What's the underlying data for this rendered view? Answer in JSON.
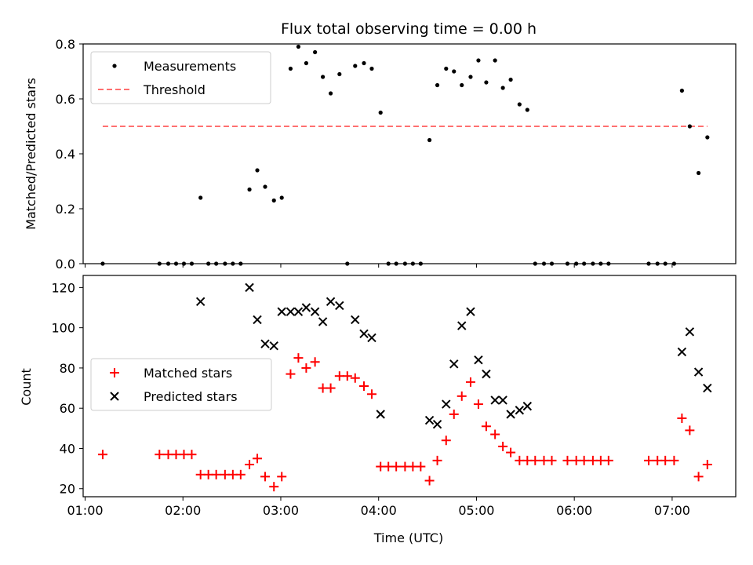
{
  "chart_data": {
    "type": "scatter",
    "title": "Flux total observing time = 0.00 h",
    "xlabel": "Time (UTC)",
    "x_ticks": [
      "01:00",
      "02:00",
      "03:00",
      "04:00",
      "05:00",
      "06:00",
      "07:00"
    ],
    "x_tick_hours": [
      1,
      2,
      3,
      4,
      5,
      6,
      7
    ],
    "xlim_hours": [
      0.98,
      7.65
    ],
    "top": {
      "ylabel": "Matched/Predicted stars",
      "ylim": [
        0,
        0.8
      ],
      "y_ticks": [
        "0.0",
        "0.2",
        "0.4",
        "0.6",
        "0.8"
      ],
      "y_tick_values": [
        0,
        0.2,
        0.4,
        0.6,
        0.8
      ],
      "legend": {
        "placement": "upper left",
        "entries": [
          "Measurements",
          "Threshold"
        ]
      },
      "series": [
        {
          "name": "Measurements",
          "marker": "dot",
          "color": "#000000",
          "x": [
            1.18,
            1.76,
            1.85,
            1.93,
            2.01,
            2.09,
            2.18,
            2.26,
            2.34,
            2.43,
            2.51,
            2.59,
            2.68,
            2.76,
            2.84,
            2.93,
            3.01,
            3.1,
            3.18,
            3.26,
            3.35,
            3.43,
            3.51,
            3.6,
            3.68,
            3.76,
            3.85,
            3.93,
            4.02,
            4.1,
            4.18,
            4.27,
            4.35,
            4.43,
            4.52,
            4.6,
            4.69,
            4.77,
            4.85,
            4.94,
            5.02,
            5.1,
            5.19,
            5.27,
            5.35,
            5.44,
            5.52,
            5.6,
            5.69,
            5.77,
            5.93,
            6.02,
            6.1,
            6.19,
            6.27,
            6.35,
            6.76,
            6.85,
            6.93,
            7.02,
            7.1,
            7.18,
            7.27,
            7.36
          ],
          "y": [
            0,
            0,
            0,
            0,
            0,
            0,
            0.24,
            0,
            0,
            0,
            0,
            0,
            0.27,
            0.34,
            0.28,
            0.23,
            0.24,
            0.71,
            0.79,
            0.73,
            0.77,
            0.68,
            0.62,
            0.69,
            0,
            0.72,
            0.73,
            0.71,
            0.55,
            0,
            0,
            0,
            0,
            0,
            0.45,
            0.65,
            0.71,
            0.7,
            0.65,
            0.68,
            0.74,
            0.66,
            0.74,
            0.64,
            0.67,
            0.58,
            0.56,
            0,
            0,
            0,
            0,
            0,
            0,
            0,
            0,
            0,
            0,
            0,
            0,
            0,
            0.63,
            0.5,
            0.33,
            0.46
          ]
        },
        {
          "name": "Threshold",
          "type": "dashed-line",
          "color": "#ff7070",
          "y": 0.5,
          "x_range": [
            1.18,
            7.36
          ]
        }
      ]
    },
    "bottom": {
      "ylabel": "Count",
      "ylim": [
        16,
        126
      ],
      "y_ticks": [
        "20",
        "40",
        "60",
        "80",
        "100",
        "120"
      ],
      "y_tick_values": [
        20,
        40,
        60,
        80,
        100,
        120
      ],
      "legend": {
        "placement": "center left",
        "entries": [
          "Matched stars",
          "Predicted stars"
        ]
      },
      "series": [
        {
          "name": "Matched stars",
          "marker": "plus",
          "color": "#ff0000",
          "x": [
            1.18,
            1.76,
            1.85,
            1.93,
            2.01,
            2.09,
            2.18,
            2.26,
            2.34,
            2.43,
            2.51,
            2.59,
            2.68,
            2.76,
            2.84,
            2.93,
            3.01,
            3.1,
            3.18,
            3.26,
            3.35,
            3.43,
            3.51,
            3.6,
            3.68,
            3.76,
            3.85,
            3.93,
            4.02,
            4.1,
            4.18,
            4.27,
            4.35,
            4.43,
            4.52,
            4.6,
            4.69,
            4.77,
            4.85,
            4.94,
            5.02,
            5.1,
            5.19,
            5.27,
            5.35,
            5.44,
            5.52,
            5.6,
            5.69,
            5.77,
            5.93,
            6.02,
            6.1,
            6.19,
            6.27,
            6.35,
            6.76,
            6.85,
            6.93,
            7.02,
            7.1,
            7.18,
            7.27,
            7.36
          ],
          "y": [
            37,
            37,
            37,
            37,
            37,
            37,
            27,
            27,
            27,
            27,
            27,
            27,
            32,
            35,
            26,
            21,
            26,
            77,
            85,
            80,
            83,
            70,
            70,
            76,
            76,
            75,
            71,
            67,
            31,
            31,
            31,
            31,
            31,
            31,
            24,
            34,
            44,
            57,
            66,
            73,
            62,
            51,
            47,
            41,
            38,
            34,
            34,
            34,
            34,
            34,
            34,
            34,
            34,
            34,
            34,
            34,
            34,
            34,
            34,
            34,
            55,
            49,
            26,
            32
          ]
        },
        {
          "name": "Predicted stars",
          "marker": "x",
          "color": "#000000",
          "x": [
            2.18,
            2.68,
            2.76,
            2.84,
            2.93,
            3.01,
            3.1,
            3.18,
            3.26,
            3.35,
            3.43,
            3.51,
            3.6,
            3.76,
            3.85,
            3.93,
            4.02,
            4.52,
            4.6,
            4.69,
            4.77,
            4.85,
            4.94,
            5.02,
            5.1,
            5.19,
            5.27,
            5.35,
            5.44,
            5.52,
            7.1,
            7.18,
            7.27,
            7.36
          ],
          "y": [
            113,
            120,
            104,
            92,
            91,
            108,
            108,
            108,
            110,
            108,
            103,
            113,
            111,
            104,
            97,
            95,
            57,
            54,
            52,
            62,
            82,
            101,
            108,
            84,
            77,
            64,
            64,
            57,
            59,
            61,
            88,
            98,
            78,
            70
          ]
        }
      ]
    }
  }
}
